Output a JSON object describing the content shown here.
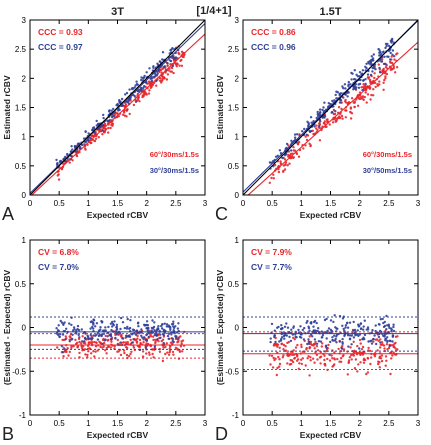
{
  "figure": {
    "header": "[1/4+1]",
    "colors": {
      "red": "#e8262c",
      "blue": "#2f3f98",
      "axis": "#000000",
      "panel_label": "#222222"
    }
  },
  "chart_data": [
    {
      "panel": "A",
      "type": "scatter",
      "title": "3T",
      "xlabel": "Expected rCBV",
      "ylabel": "Estimated  rCBV",
      "xlim": [
        0,
        3
      ],
      "ylim": [
        0,
        3
      ],
      "xticks": [
        "0",
        "0.5",
        "1",
        "1.5",
        "2",
        "2.5",
        "3"
      ],
      "yticks": [
        "0",
        "0.5",
        "1",
        "1.5",
        "2",
        "2.5",
        "3"
      ],
      "stats": [
        {
          "label": "CCC = 0.93",
          "color": "#e8262c"
        },
        {
          "label": "CCC = 0.97",
          "color": "#2f3f98"
        }
      ],
      "legend": [
        {
          "label": "60°/30ms/1.5s",
          "color": "#e8262c"
        },
        {
          "label": "30°/30ms/1.5s",
          "color": "#2f3f98"
        }
      ],
      "legend_position": "bottom-right",
      "series": [
        {
          "color": "#e8262c",
          "x_range": [
            0.45,
            2.65
          ],
          "fit": {
            "slope": 0.93,
            "intercept": -0.03
          },
          "scatter_sd": 0.07
        },
        {
          "color": "#2f3f98",
          "x_range": [
            0.45,
            2.55
          ],
          "fit": {
            "slope": 0.97,
            "intercept": 0.03
          },
          "scatter_sd": 0.07
        }
      ],
      "fit_lines": [
        {
          "color": "#e8262c",
          "slope": 0.93,
          "intercept": -0.03
        },
        {
          "color": "#2f3f98",
          "slope": 0.97,
          "intercept": 0.03
        },
        {
          "color": "#000000",
          "slope": 1.0,
          "intercept": 0.0
        }
      ]
    },
    {
      "panel": "C",
      "type": "scatter",
      "title": "1.5T",
      "xlabel": "Expected rCBV",
      "ylabel": "Estimated  rCBV",
      "xlim": [
        0,
        3
      ],
      "ylim": [
        0,
        3
      ],
      "xticks": [
        "0",
        "0.5",
        "1",
        "1.5",
        "2",
        "2.5",
        "3"
      ],
      "yticks": [
        "0",
        "0.5",
        "1",
        "1.5",
        "2",
        "2.5",
        "3"
      ],
      "stats": [
        {
          "label": "CCC = 0.86",
          "color": "#e8262c"
        },
        {
          "label": "CCC = 0.96",
          "color": "#2f3f98"
        }
      ],
      "legend": [
        {
          "label": "60°/30ms/1.5s",
          "color": "#e8262c"
        },
        {
          "label": "30°/50ms/1.5s",
          "color": "#2f3f98"
        }
      ],
      "legend_position": "bottom-right",
      "series": [
        {
          "color": "#e8262c",
          "x_range": [
            0.45,
            2.65
          ],
          "fit": {
            "slope": 0.9,
            "intercept": -0.08
          },
          "scatter_sd": 0.1
        },
        {
          "color": "#2f3f98",
          "x_range": [
            0.45,
            2.6
          ],
          "fit": {
            "slope": 0.98,
            "intercept": 0.05
          },
          "scatter_sd": 0.09
        }
      ],
      "fit_lines": [
        {
          "color": "#e8262c",
          "slope": 0.9,
          "intercept": -0.08
        },
        {
          "color": "#2f3f98",
          "slope": 0.98,
          "intercept": 0.05
        },
        {
          "color": "#000000",
          "slope": 1.0,
          "intercept": 0.0
        }
      ]
    },
    {
      "panel": "B",
      "type": "scatter",
      "title": "",
      "xlabel": "Expected rCBV",
      "ylabel": "(Estimated - Expected) rCBV",
      "xlim": [
        0,
        3
      ],
      "ylim": [
        -1.0,
        1.0
      ],
      "xticks": [
        "0",
        "0.5",
        "1",
        "1.5",
        "2",
        "2.5",
        "3"
      ],
      "yticks": [
        "-1",
        "-0.5",
        "0",
        "0.5",
        "1"
      ],
      "stats": [
        {
          "label": "CV = 6.8%",
          "color": "#e8262c"
        },
        {
          "label": "CV = 7.0%",
          "color": "#2f3f98"
        }
      ],
      "series": [
        {
          "color": "#e8262c",
          "x_range": [
            0.45,
            2.65
          ],
          "mean": -0.2,
          "scatter_sd": 0.07
        },
        {
          "color": "#2f3f98",
          "x_range": [
            0.45,
            2.55
          ],
          "mean": -0.05,
          "scatter_sd": 0.07
        }
      ],
      "hlines": [
        {
          "color": "#e8262c",
          "y": -0.35,
          "style": "dotted"
        },
        {
          "color": "#e8262c",
          "y": -0.2,
          "style": "solid"
        },
        {
          "color": "#e8262c",
          "y": -0.07,
          "style": "dotted"
        },
        {
          "color": "#2f3f98",
          "y": -0.25,
          "style": "dotted"
        },
        {
          "color": "#2f3f98",
          "y": -0.05,
          "style": "solid"
        },
        {
          "color": "#2f3f98",
          "y": 0.12,
          "style": "dotted"
        }
      ]
    },
    {
      "panel": "D",
      "type": "scatter",
      "title": "",
      "xlabel": "Expected rCBV",
      "ylabel": "(Estimated - Expected) rCBV",
      "xlim": [
        0,
        3
      ],
      "ylim": [
        -1.0,
        1.0
      ],
      "xticks": [
        "0",
        "0.5",
        "1",
        "1.5",
        "2",
        "2.5",
        "3"
      ],
      "yticks": [
        "-1",
        "-0.5",
        "0",
        "0.5",
        "1"
      ],
      "stats": [
        {
          "label": "CV = 7.9%",
          "color": "#e8262c"
        },
        {
          "label": "CV = 7.7%",
          "color": "#2f3f98"
        }
      ],
      "series": [
        {
          "color": "#e8262c",
          "x_range": [
            0.45,
            2.65
          ],
          "mean": -0.3,
          "scatter_sd": 0.1
        },
        {
          "color": "#2f3f98",
          "x_range": [
            0.45,
            2.6
          ],
          "mean": -0.07,
          "scatter_sd": 0.08
        }
      ],
      "hlines": [
        {
          "color": "#e8262c",
          "y": -0.48,
          "style": "dotted"
        },
        {
          "color": "#e8262c",
          "y": -0.3,
          "style": "solid"
        },
        {
          "color": "#e8262c",
          "y": -0.05,
          "style": "dotted"
        },
        {
          "color": "#2f3f98",
          "y": -0.27,
          "style": "dotted"
        },
        {
          "color": "#2f3f98",
          "y": -0.07,
          "style": "solid"
        },
        {
          "color": "#2f3f98",
          "y": 0.12,
          "style": "dotted"
        }
      ]
    }
  ]
}
